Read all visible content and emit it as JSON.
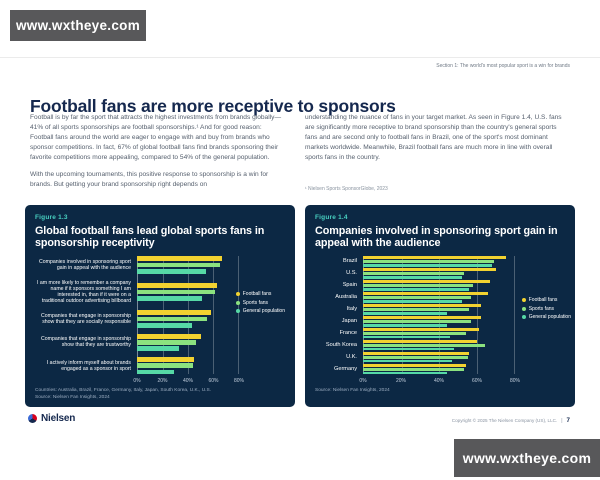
{
  "watermark": {
    "text": "www.wxtheye.com"
  },
  "header": {
    "section_label": "Section 1: The world's most popular sport is a win for brands"
  },
  "page_title": "Football fans are more receptive to sponsors",
  "body": {
    "col_left_p1": "Football is by far the sport that attracts the highest investments from brands globally—41% of all sports sponsorships are football sponsorships.¹ And for good reason: Football fans around the world are eager to engage with and buy from brands who sponsor competitions. In fact, 67% of global football fans find brands sponsoring their favorite competitions more appealing, compared to 54% of the general population.",
    "col_left_p2": "With the upcoming tournaments, this positive response to sponsorship is a win for brands. But getting your brand sponsorship right depends on",
    "col_right_p1": "understanding the nuance of fans in your target market. As seen in Figure 1.4, U.S. fans are significantly more receptive to brand sponsorship than the country's general sports fans and are second only to football fans in Brazil, one of the sport's most dominant markets worldwide. Meanwhile, Brazil football fans are much more in line with overall sports fans in the country.",
    "footnote": "¹ Nielsen Sports SponsorGlobe, 2023"
  },
  "colors": {
    "panel_bg": "#0c2844",
    "accent_teal": "#48d1c2",
    "football_fans": "#f2d230",
    "sports_fans": "#8be27f",
    "general_population": "#56d9a6"
  },
  "chart_data": [
    {
      "type": "bar",
      "orientation": "horizontal",
      "figure_label": "Figure 1.3",
      "title": "Global football fans lead global sports fans in sponsorship receptivity",
      "categories": [
        "Companies involved in sponsoring sport gain in appeal with the audience",
        "I am more likely to remember a company name if it sponsors something I am interested in, than if it were on a traditional outdoor advertising billboard",
        "Companies that engage in sponsorship show that they are socially responsible",
        "Companies that engage in sponsorship show that they are trustworthy",
        "I actively inform myself about brands engaged as a sponsor in sport"
      ],
      "series": [
        {
          "name": "Football fans",
          "color": "#f2d230",
          "values": [
            67,
            63,
            58,
            50,
            45
          ]
        },
        {
          "name": "Sports fans",
          "color": "#8be27f",
          "values": [
            65,
            61,
            55,
            46,
            44
          ]
        },
        {
          "name": "General population",
          "color": "#56d9a6",
          "values": [
            54,
            51,
            43,
            33,
            29
          ]
        }
      ],
      "xlim": [
        0,
        80
      ],
      "xticks": [
        "0%",
        "20%",
        "40%",
        "60%",
        "80%"
      ],
      "grid": true,
      "legend_position": "right",
      "footnotes": [
        "Countries: Australia, Brazil, France, Germany, Italy, Japan, South Korea, U.K., U.S.",
        "Source: Nielsen Fan Insights, 2024"
      ]
    },
    {
      "type": "bar",
      "orientation": "horizontal",
      "figure_label": "Figure 1.4",
      "title": "Companies involved in sponsoring sport gain in appeal with the audience",
      "categories": [
        "Brazil",
        "U.S.",
        "Spain",
        "Australia",
        "Italy",
        "Japan",
        "France",
        "South Korea",
        "U.K.",
        "Germany"
      ],
      "series": [
        {
          "name": "Football fans",
          "color": "#f2d230",
          "values": [
            75,
            70,
            67,
            66,
            62,
            62,
            61,
            60,
            56,
            54
          ]
        },
        {
          "name": "Sports fans",
          "color": "#8be27f",
          "values": [
            69,
            53,
            58,
            57,
            56,
            57,
            54,
            64,
            55,
            53
          ]
        },
        {
          "name": "General population",
          "color": "#56d9a6",
          "values": [
            68,
            52,
            56,
            52,
            44,
            44,
            46,
            48,
            47,
            44
          ]
        }
      ],
      "xlim": [
        0,
        80
      ],
      "xticks": [
        "0%",
        "20%",
        "40%",
        "60%",
        "80%"
      ],
      "grid": true,
      "legend_position": "right",
      "footnotes": [
        "Source: Nielsen Fan Insights, 2024"
      ]
    }
  ],
  "footer": {
    "logo_text": "Nielsen",
    "copyright": "Copyright © 2025 The Nielsen Company (US), LLC.",
    "separator": "|",
    "page_number": "7"
  }
}
